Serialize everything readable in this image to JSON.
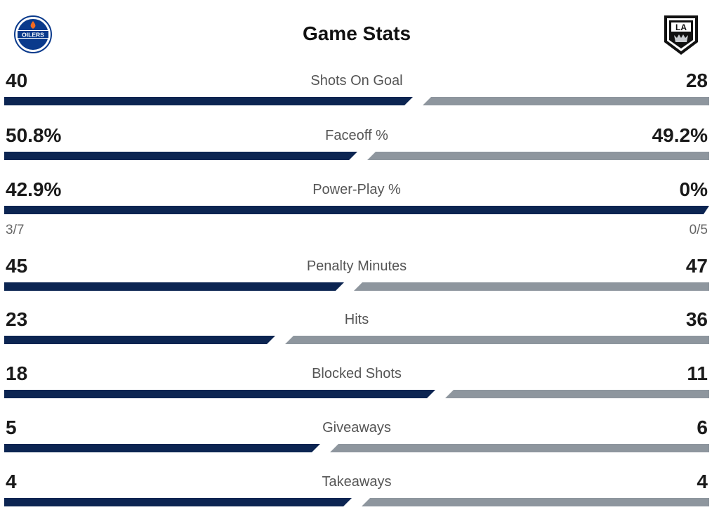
{
  "header": {
    "title": "Game Stats",
    "home_logo_text": "OILERS",
    "away_logo_text": "LA"
  },
  "colors": {
    "home_bar": "#0c2552",
    "away_bar": "#8e969e",
    "home_logo_blue": "#0a3a8c",
    "home_logo_orange": "#f26a21"
  },
  "stats": [
    {
      "label": "Shots On Goal",
      "home": "40",
      "away": "28",
      "home_value": 40,
      "away_value": 28
    },
    {
      "label": "Faceoff %",
      "home": "50.8%",
      "away": "49.2%",
      "home_value": 50.8,
      "away_value": 49.2
    },
    {
      "label": "Power-Play %",
      "home": "42.9%",
      "away": "0%",
      "home_value": 42.9,
      "away_value": 0,
      "home_sub": "3/7",
      "away_sub": "0/5"
    },
    {
      "label": "Penalty Minutes",
      "home": "45",
      "away": "47",
      "home_value": 45,
      "away_value": 47
    },
    {
      "label": "Hits",
      "home": "23",
      "away": "36",
      "home_value": 23,
      "away_value": 36
    },
    {
      "label": "Blocked Shots",
      "home": "18",
      "away": "11",
      "home_value": 18,
      "away_value": 11
    },
    {
      "label": "Giveaways",
      "home": "5",
      "away": "6",
      "home_value": 5,
      "away_value": 6
    },
    {
      "label": "Takeaways",
      "home": "4",
      "away": "4",
      "home_value": 4,
      "away_value": 4
    }
  ]
}
